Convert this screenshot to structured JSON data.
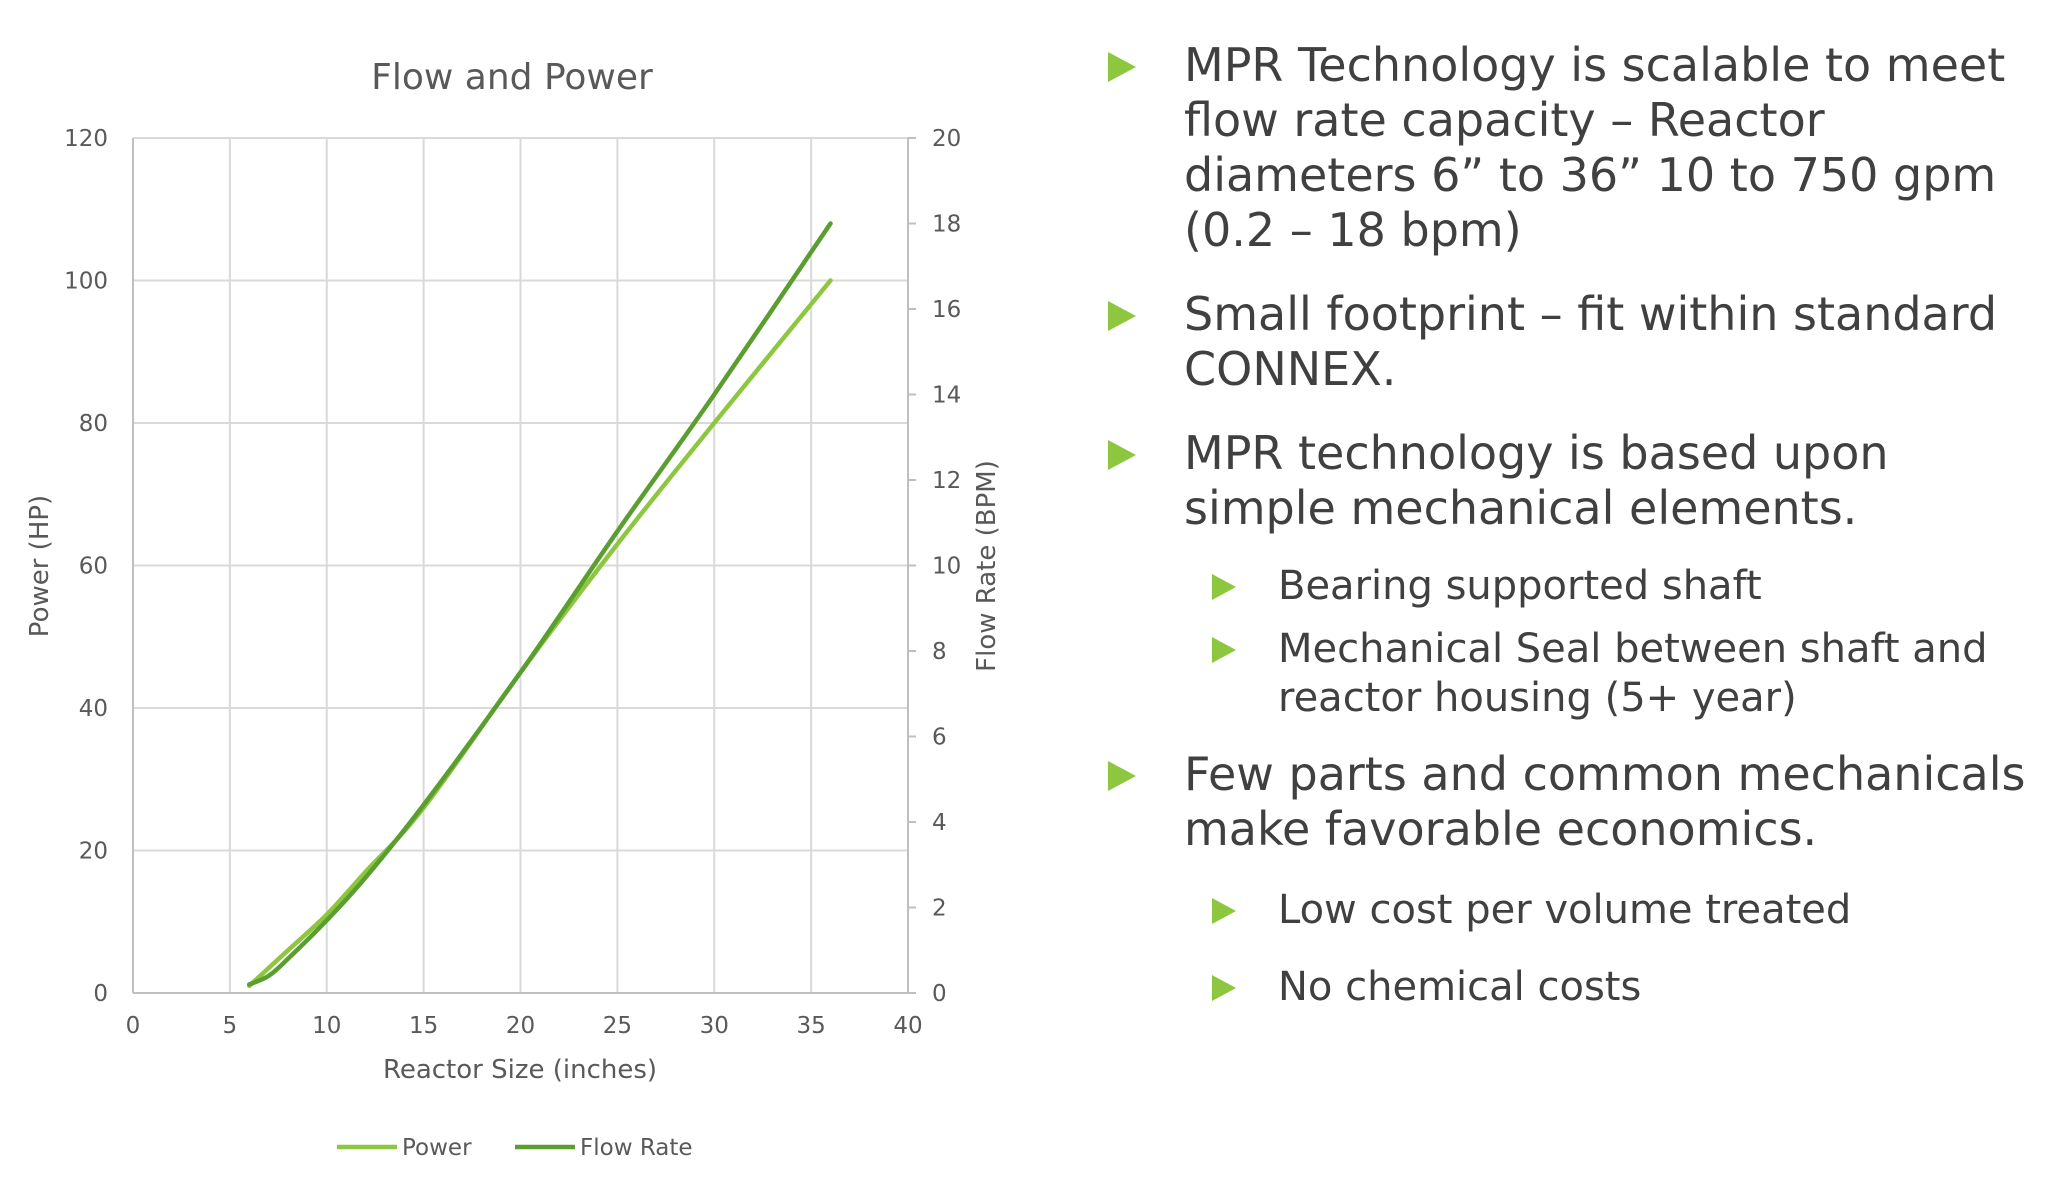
{
  "chart_data": {
    "type": "line",
    "title": "Flow and Power",
    "xlabel": "Reactor Size (inches)",
    "ylabel": "Power (HP)",
    "y2label": "Flow Rate (BPM)",
    "xlim": [
      0,
      40
    ],
    "ylim": [
      0,
      120
    ],
    "y2lim": [
      0,
      20
    ],
    "xticks": [
      "0",
      "5",
      "10",
      "15",
      "20",
      "25",
      "30",
      "35",
      "40"
    ],
    "yticks": [
      "0",
      "20",
      "40",
      "60",
      "80",
      "100",
      "120"
    ],
    "y2ticks": [
      "0",
      "2",
      "4",
      "6",
      "8",
      "10",
      "12",
      "14",
      "16",
      "18",
      "20"
    ],
    "grid": true,
    "legend": "bottom",
    "series": [
      {
        "name": "Power",
        "axis": "left",
        "color": "#8dc63f",
        "x": [
          6,
          8,
          10,
          12,
          15,
          20,
          25,
          30,
          36
        ],
        "y": [
          1,
          6,
          11,
          17,
          26,
          45,
          63,
          80,
          100
        ]
      },
      {
        "name": "Flow Rate",
        "axis": "right",
        "color": "#5a9e2f",
        "x": [
          6,
          7,
          8,
          10,
          12,
          15,
          20,
          25,
          30,
          36
        ],
        "y": [
          0.2,
          0.4,
          0.8,
          1.7,
          2.7,
          4.4,
          7.5,
          10.8,
          14.0,
          18.0
        ]
      }
    ]
  },
  "bullets": [
    {
      "level": 1,
      "text": "MPR Technology is scalable to meet flow rate capacity – Reactor diameters 6” to 36” 10 to 750 gpm (0.2 – 18 bpm)"
    },
    {
      "level": 1,
      "text": "Small footprint – fit within standard CONNEX."
    },
    {
      "level": 1,
      "text": "MPR technology is based upon simple mechanical elements."
    },
    {
      "level": 2,
      "text": "Bearing supported shaft"
    },
    {
      "level": 2,
      "text": "Mechanical Seal between shaft and reactor housing (5+ year)"
    },
    {
      "level": 1,
      "text": "Few parts and common mechanicals make favorable economics."
    },
    {
      "level": 2,
      "text": "Low cost per volume treated"
    },
    {
      "level": 2,
      "text": "No chemical costs"
    }
  ],
  "colors": {
    "accent": "#8dc63f",
    "text": "#404040"
  }
}
